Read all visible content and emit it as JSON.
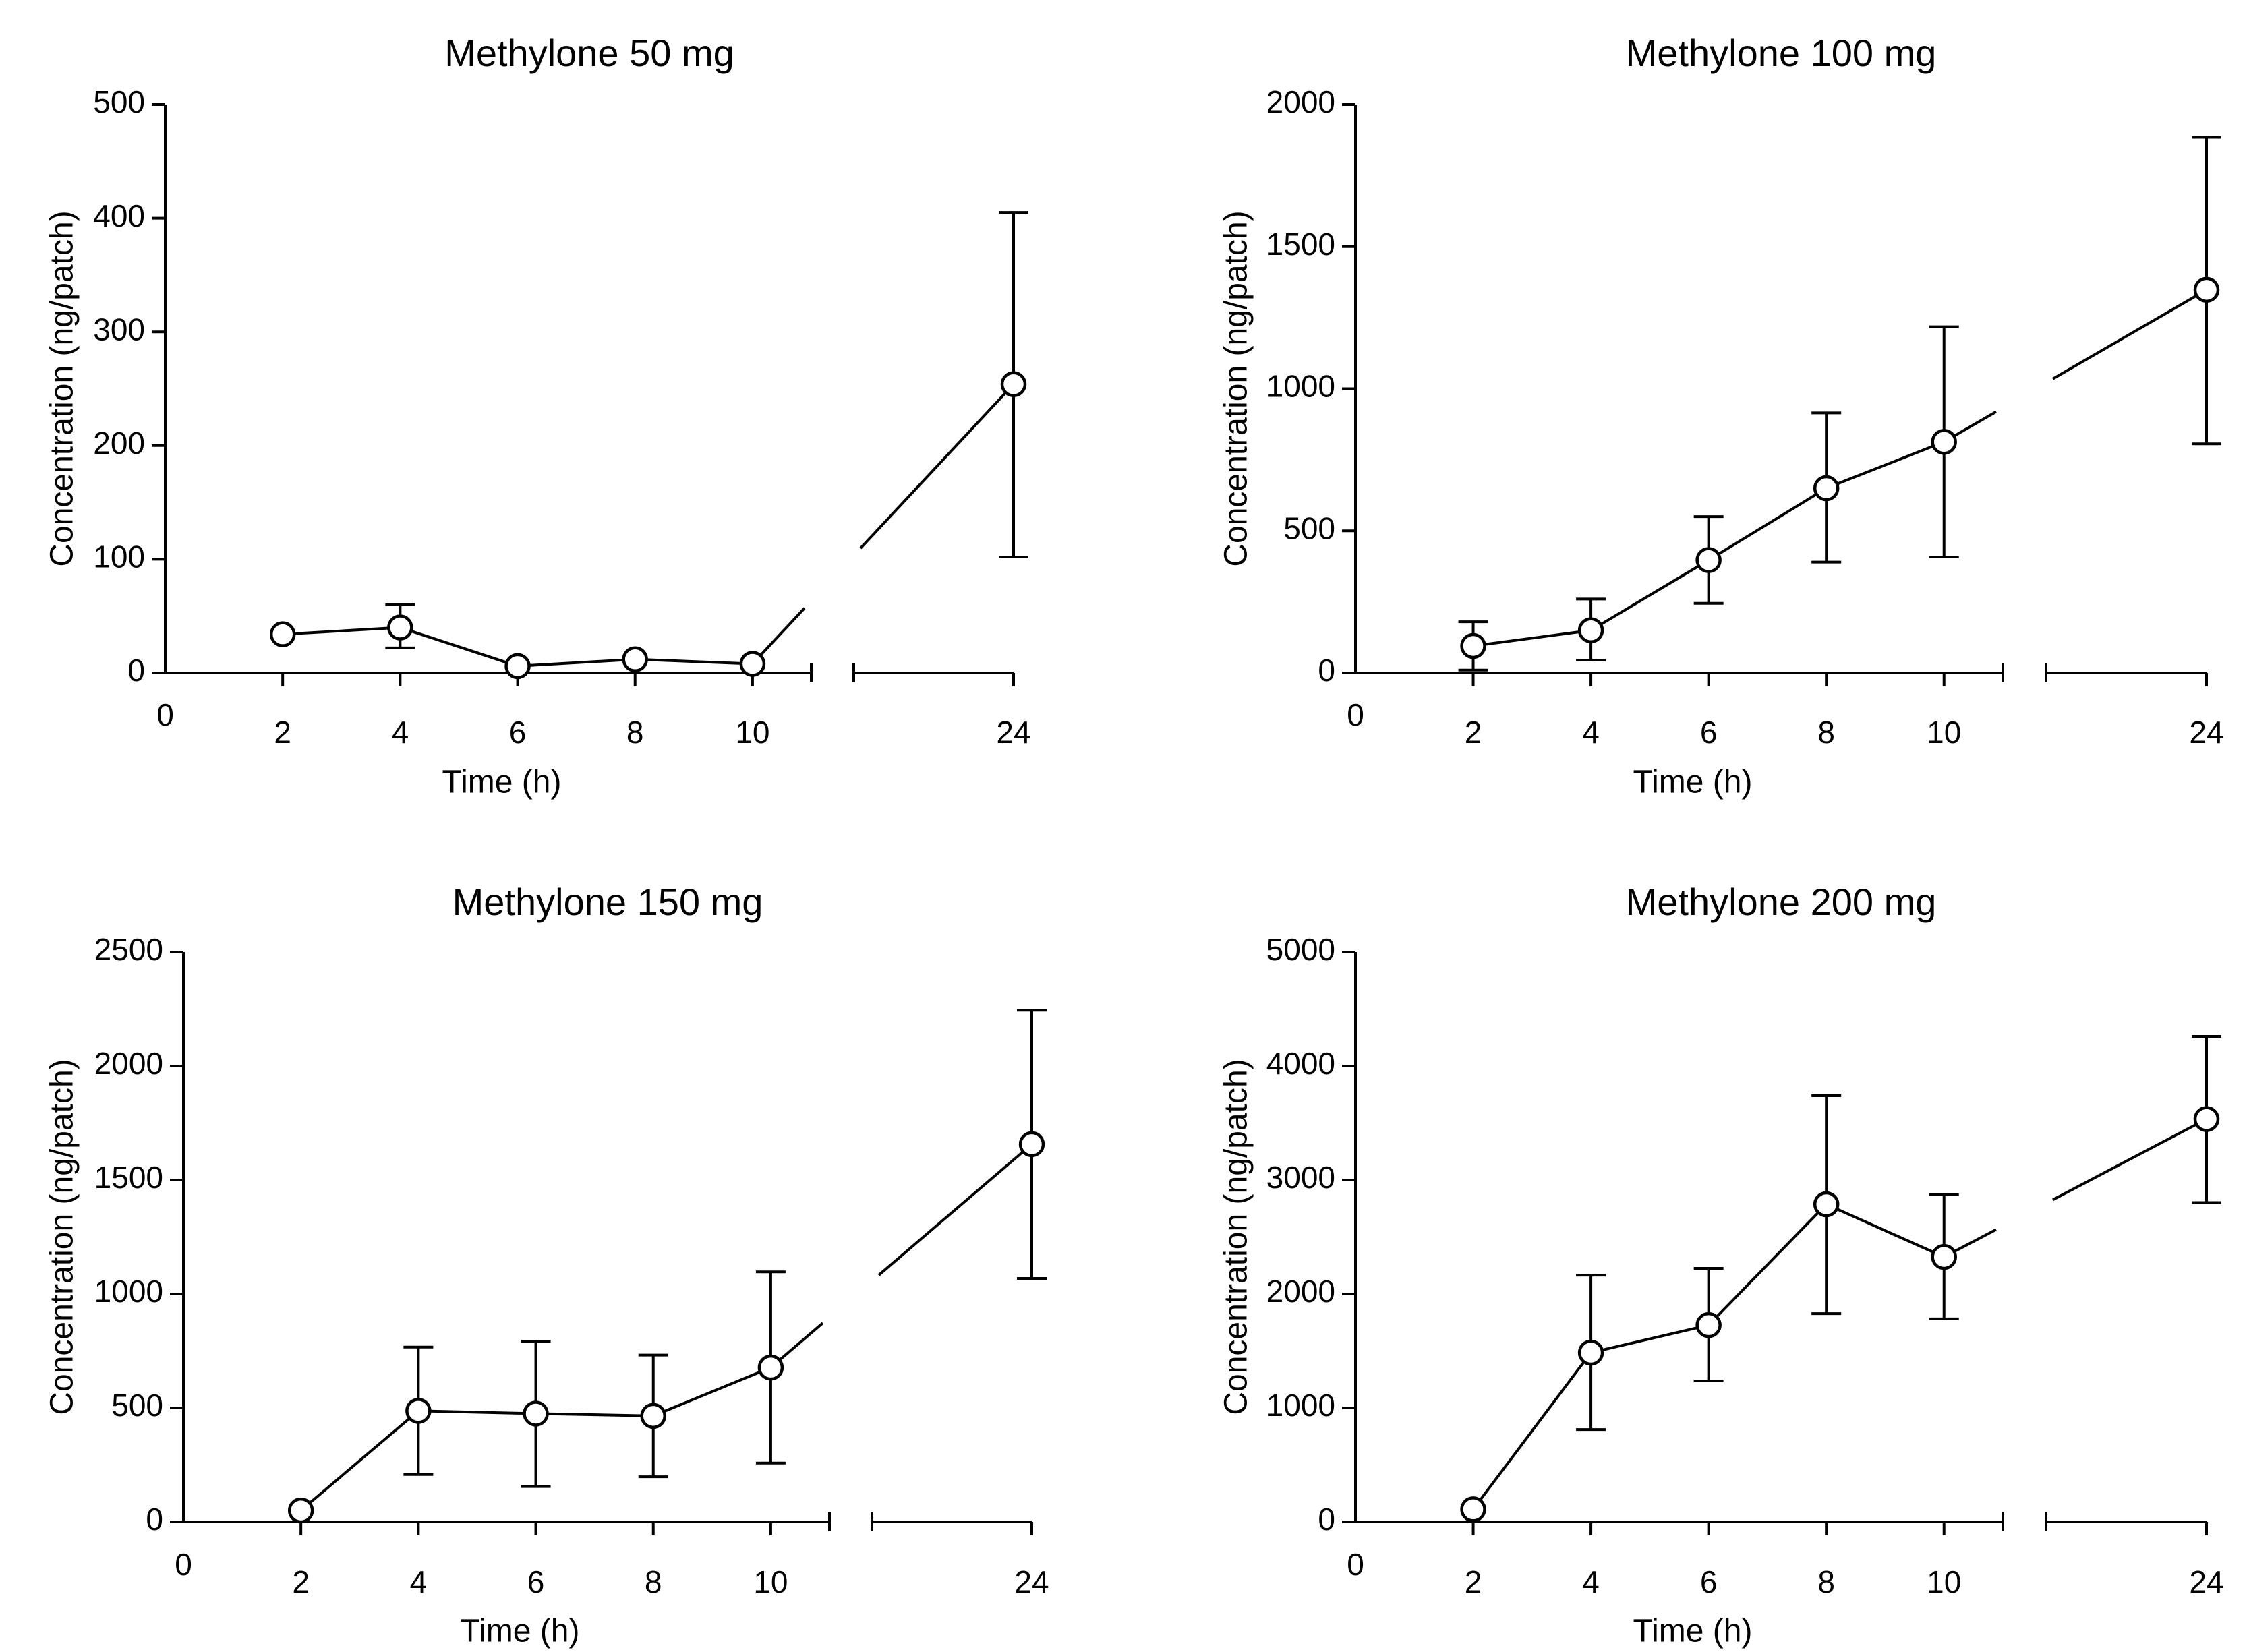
{
  "figure": {
    "background": "#ffffff",
    "line_color": "#000000",
    "marker_fill": "#ffffff"
  },
  "chart_data": [
    {
      "type": "line",
      "title": "Methylone 50 mg",
      "xlabel": "Time (h)",
      "ylabel": "Concentration (ng/patch)",
      "x_origin_label": "0",
      "x_ticks": [
        "2",
        "4",
        "6",
        "8",
        "10",
        "24"
      ],
      "y_ticks": [
        "0",
        "100",
        "200",
        "300",
        "400",
        "500"
      ],
      "ylim": [
        0,
        500
      ],
      "x_segments": [
        [
          0,
          11
        ],
        [
          23.3,
          24
        ]
      ],
      "axis_break": [
        11,
        23.3
      ],
      "series": [
        {
          "name": "Methylone 50 mg",
          "x": [
            2,
            4,
            6,
            8,
            10,
            24
          ],
          "y": [
            34,
            40,
            6,
            12,
            8,
            254
          ],
          "error_upper": [
            null,
            60,
            null,
            null,
            null,
            405
          ],
          "error_lower": [
            null,
            22,
            null,
            null,
            null,
            102
          ]
        }
      ]
    },
    {
      "type": "line",
      "title": "Methylone 100 mg",
      "xlabel": "Time (h)",
      "ylabel": "Concentration (ng/patch)",
      "x_origin_label": "0",
      "x_ticks": [
        "2",
        "4",
        "6",
        "8",
        "10",
        "24"
      ],
      "y_ticks": [
        "0",
        "500",
        "1000",
        "1500",
        "2000"
      ],
      "ylim": [
        0,
        2000
      ],
      "x_segments": [
        [
          0,
          11
        ],
        [
          23.3,
          24
        ]
      ],
      "axis_break": [
        11,
        23.3
      ],
      "series": [
        {
          "name": "Methylone 100 mg",
          "x": [
            2,
            4,
            6,
            8,
            10,
            24
          ],
          "y": [
            95,
            150,
            397,
            650,
            813,
            1348
          ],
          "error_upper": [
            180,
            260,
            550,
            915,
            1218,
            1885
          ],
          "error_lower": [
            10,
            45,
            245,
            390,
            408,
            806
          ]
        }
      ]
    },
    {
      "type": "line",
      "title": "Methylone 150 mg",
      "xlabel": "Time (h)",
      "ylabel": "Concentration (ng/patch)",
      "x_origin_label": "0",
      "x_ticks": [
        "2",
        "4",
        "6",
        "8",
        "10",
        "24"
      ],
      "y_ticks": [
        "0",
        "500",
        "1000",
        "1500",
        "2000",
        "2500"
      ],
      "ylim": [
        0,
        2500
      ],
      "x_segments": [
        [
          0,
          11
        ],
        [
          23.3,
          24
        ]
      ],
      "axis_break": [
        11,
        23.3
      ],
      "series": [
        {
          "name": "Methylone 150 mg",
          "x": [
            2,
            4,
            6,
            8,
            10,
            24
          ],
          "y": [
            50,
            487,
            475,
            465,
            677,
            1657
          ],
          "error_upper": [
            null,
            767,
            793,
            732,
            1097,
            2245
          ],
          "error_lower": [
            null,
            208,
            155,
            198,
            258,
            1068
          ]
        }
      ]
    },
    {
      "type": "line",
      "title": "Methylone 200 mg",
      "xlabel": "Time (h)",
      "ylabel": "Concentration (ng/patch)",
      "x_origin_label": "0",
      "x_ticks": [
        "2",
        "4",
        "6",
        "8",
        "10",
        "24"
      ],
      "y_ticks": [
        "0",
        "1000",
        "2000",
        "3000",
        "4000",
        "5000"
      ],
      "ylim": [
        0,
        5000
      ],
      "x_segments": [
        [
          0,
          11
        ],
        [
          23.3,
          24
        ]
      ],
      "axis_break": [
        11,
        23.3
      ],
      "series": [
        {
          "name": "Methylone 200 mg",
          "x": [
            2,
            4,
            6,
            8,
            10,
            24
          ],
          "y": [
            110,
            1485,
            1727,
            2787,
            2325,
            3535
          ],
          "error_upper": [
            null,
            2165,
            2225,
            3740,
            2870,
            4260
          ],
          "error_lower": [
            null,
            810,
            1237,
            1828,
            1782,
            2802
          ]
        }
      ]
    }
  ]
}
